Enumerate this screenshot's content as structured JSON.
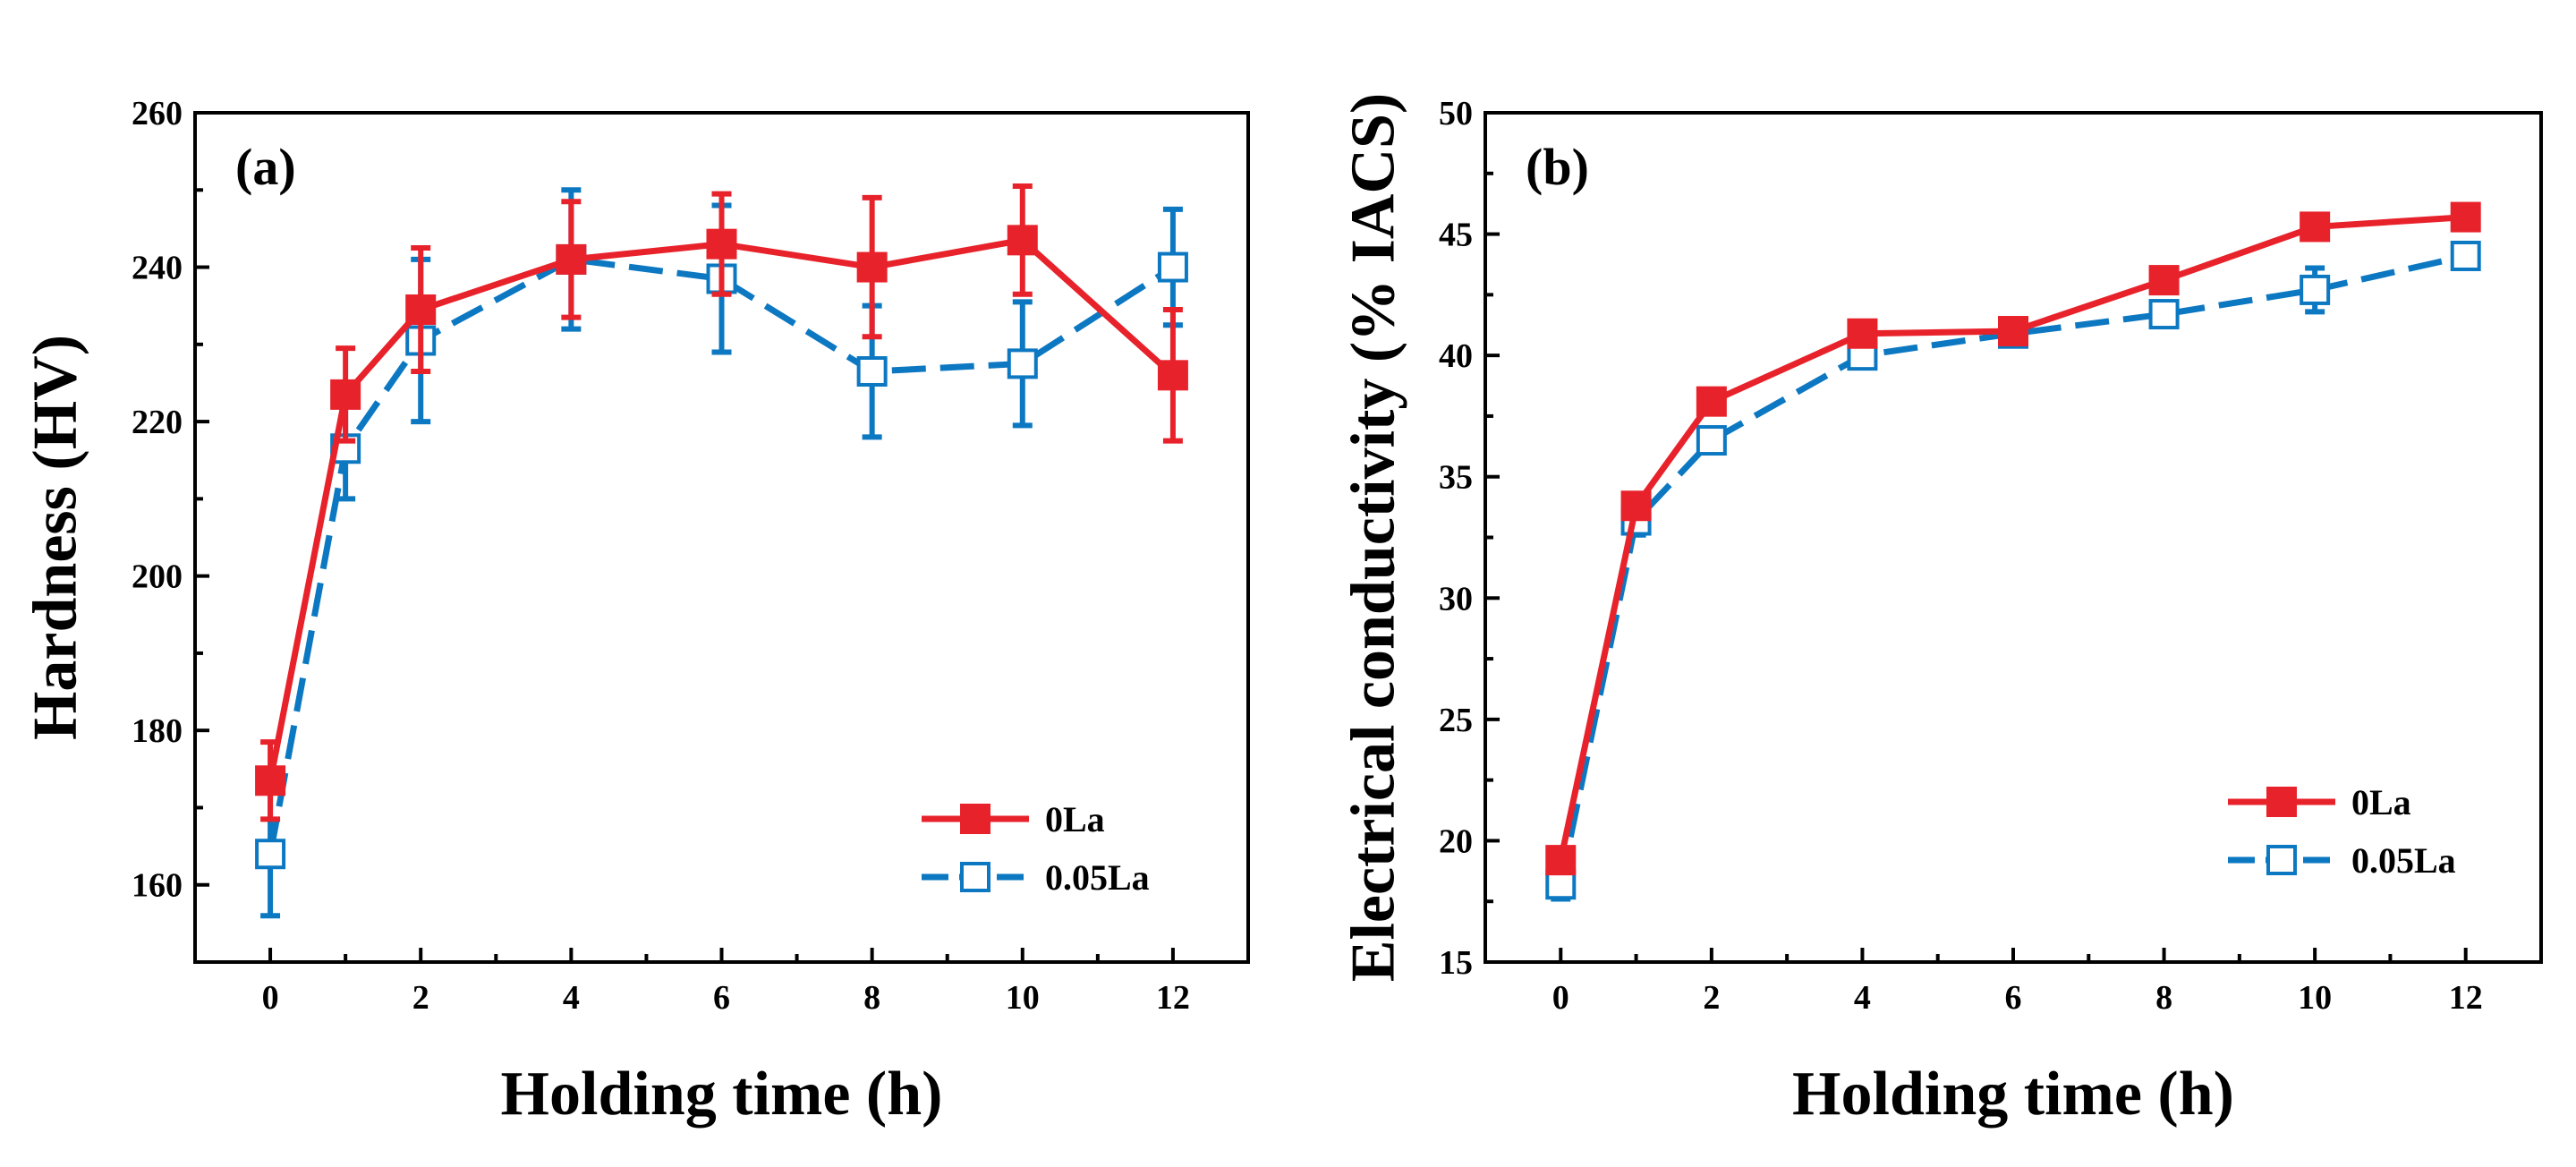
{
  "colors": {
    "red": "#e8222b",
    "blue": "#0d78c2",
    "axis": "#000000",
    "background": "#ffffff"
  },
  "chart_data": [
    {
      "type": "line",
      "panel_label": "(a)",
      "xlabel": "Holding time (h)",
      "ylabel": "Hardness (HV)",
      "xlim": [
        -1,
        13
      ],
      "ylim": [
        150,
        260
      ],
      "xticks": [
        0,
        2,
        4,
        6,
        8,
        10,
        12
      ],
      "xtick_labels": [
        "0",
        "2",
        "4",
        "6",
        "8",
        "10",
        "12"
      ],
      "yticks": [
        160,
        180,
        200,
        220,
        240,
        260
      ],
      "ytick_labels": [
        "160",
        "180",
        "200",
        "220",
        "240",
        "260"
      ],
      "grid": false,
      "legend_position": "bottom-right",
      "series": [
        {
          "name": "0La",
          "color": "#e8222b",
          "marker": "filled-square",
          "line_style": "solid",
          "x": [
            0,
            1,
            2,
            4,
            6,
            8,
            10,
            12
          ],
          "y": [
            173.5,
            223.5,
            234.5,
            241,
            243,
            240,
            243.5,
            226
          ],
          "err": [
            5,
            6,
            8,
            7.5,
            6.5,
            9,
            7,
            8.5
          ]
        },
        {
          "name": "0.05La",
          "color": "#0d78c2",
          "marker": "open-square",
          "line_style": "dashed",
          "x": [
            0,
            1,
            2,
            4,
            6,
            8,
            10,
            12
          ],
          "y": [
            164,
            216.5,
            230.5,
            241,
            238.5,
            226.5,
            227.5,
            240
          ],
          "err": [
            8,
            6.5,
            10.5,
            9,
            9.5,
            8.5,
            8,
            7.5
          ]
        }
      ]
    },
    {
      "type": "line",
      "panel_label": "(b)",
      "xlabel": "Holding time (h)",
      "ylabel": "Electrical conductivity (% IACS)",
      "xlim": [
        -1,
        13
      ],
      "ylim": [
        15,
        50
      ],
      "xticks": [
        0,
        2,
        4,
        6,
        8,
        10,
        12
      ],
      "xtick_labels": [
        "0",
        "2",
        "4",
        "6",
        "8",
        "10",
        "12"
      ],
      "yticks": [
        15,
        20,
        25,
        30,
        35,
        40,
        45,
        50
      ],
      "ytick_labels": [
        "15",
        "20",
        "25",
        "30",
        "35",
        "40",
        "45",
        "50"
      ],
      "grid": false,
      "legend_position": "bottom-right",
      "series": [
        {
          "name": "0La",
          "color": "#e8222b",
          "marker": "filled-square",
          "line_style": "solid",
          "x": [
            0,
            1,
            2,
            4,
            6,
            8,
            10,
            12
          ],
          "y": [
            19.2,
            33.8,
            38.1,
            40.9,
            41.0,
            43.1,
            45.3,
            45.7
          ],
          "err": [
            0.5,
            0.5,
            0.4,
            0.4,
            0.3,
            0.4,
            0.5,
            0.4
          ]
        },
        {
          "name": "0.05La",
          "color": "#0d78c2",
          "marker": "open-square",
          "line_style": "dashed",
          "x": [
            0,
            1,
            2,
            4,
            6,
            8,
            10,
            12
          ],
          "y": [
            18.2,
            33.2,
            36.5,
            40.0,
            40.9,
            41.7,
            42.7,
            44.1
          ],
          "err": [
            0.6,
            0.6,
            0.5,
            0.5,
            0.4,
            0.5,
            0.9,
            0.5
          ]
        }
      ]
    }
  ]
}
